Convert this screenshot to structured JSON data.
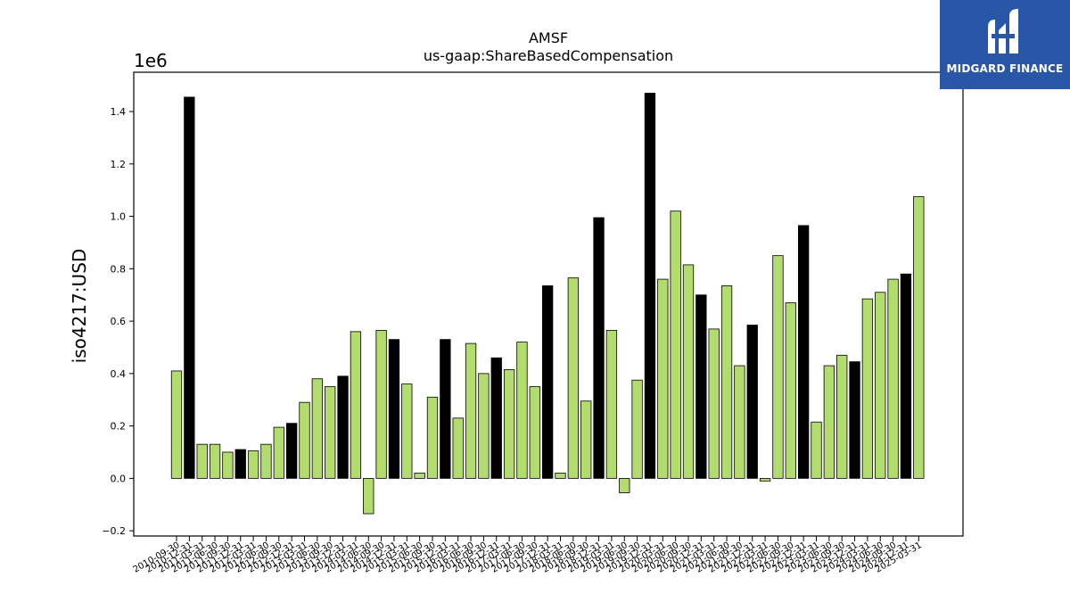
{
  "colors": {
    "bar_default": "#b2dc6e",
    "bar_highlight": "#000000",
    "edge": "#000000",
    "logo_bg": "#2a56a8"
  },
  "logo": {
    "brand": "MIDGARD FINANCE",
    "icon": "midgard-logo-icon"
  },
  "chart_data": {
    "type": "bar",
    "title": "AMSF",
    "subtitle": "us-gaap:ShareBasedCompensation",
    "ylabel": "iso4217:USD",
    "y_offset_label": "1e6",
    "ylim": [
      -0.22,
      1.55
    ],
    "y_ticks": [
      "−0.2",
      "0.0",
      "0.2",
      "0.4",
      "0.6",
      "0.8",
      "1.0",
      "1.2",
      "1.4"
    ],
    "y_tick_values": [
      -0.2,
      0.0,
      0.2,
      0.4,
      0.6,
      0.8,
      1.0,
      1.2,
      1.4
    ],
    "grid": false,
    "categories": [
      "2010-09-30",
      "2010-12-31",
      "2011-03-31",
      "2011-06-30",
      "2011-09-30",
      "2011-12-31",
      "2012-03-31",
      "2012-06-30",
      "2012-09-30",
      "2012-12-31",
      "2013-03-31",
      "2013-06-30",
      "2013-09-30",
      "2013-12-31",
      "2014-03-31",
      "2014-06-30",
      "2014-09-30",
      "2014-12-31",
      "2015-03-31",
      "2015-06-30",
      "2015-09-30",
      "2015-12-31",
      "2016-03-31",
      "2016-06-30",
      "2016-09-30",
      "2016-12-31",
      "2017-03-31",
      "2017-06-30",
      "2017-09-30",
      "2017-12-31",
      "2018-03-31",
      "2018-06-30",
      "2018-09-30",
      "2018-12-31",
      "2019-03-31",
      "2019-06-30",
      "2019-09-30",
      "2019-12-31",
      "2020-03-31",
      "2020-06-30",
      "2020-09-30",
      "2020-12-31",
      "2021-03-31",
      "2021-06-30",
      "2021-09-30",
      "2021-12-31",
      "2022-03-31",
      "2022-06-30",
      "2022-09-30",
      "2022-12-31",
      "2023-03-31",
      "2023-06-30",
      "2023-09-30",
      "2023-12-31",
      "2024-03-31",
      "2024-06-30",
      "2024-09-30",
      "2024-12-31",
      "2025-03-31"
    ],
    "values": [
      0.41,
      1.455,
      0.13,
      0.13,
      0.1,
      0.11,
      0.105,
      0.13,
      0.195,
      0.21,
      0.29,
      0.38,
      0.35,
      0.39,
      0.56,
      -0.135,
      0.565,
      0.53,
      0.36,
      0.02,
      0.31,
      0.53,
      0.23,
      0.515,
      0.4,
      0.46,
      0.415,
      0.52,
      0.35,
      0.735,
      0.02,
      0.765,
      0.295,
      0.995,
      0.565,
      -0.055,
      0.375,
      1.47,
      0.76,
      1.02,
      0.815,
      0.7,
      0.57,
      0.735,
      0.43,
      0.585,
      -0.01,
      0.85,
      0.67,
      0.965,
      0.215,
      0.43,
      0.47,
      0.445,
      0.685,
      0.71,
      0.76,
      0.78,
      1.075
    ],
    "highlighted_categories": [
      "2010-12-31",
      "2011-12-31",
      "2012-12-31",
      "2013-12-31",
      "2014-12-31",
      "2015-12-31",
      "2016-12-31",
      "2017-12-31",
      "2018-12-31",
      "2019-12-31",
      "2020-12-31",
      "2021-12-31",
      "2022-12-31",
      "2023-12-31",
      "2024-12-31"
    ]
  }
}
